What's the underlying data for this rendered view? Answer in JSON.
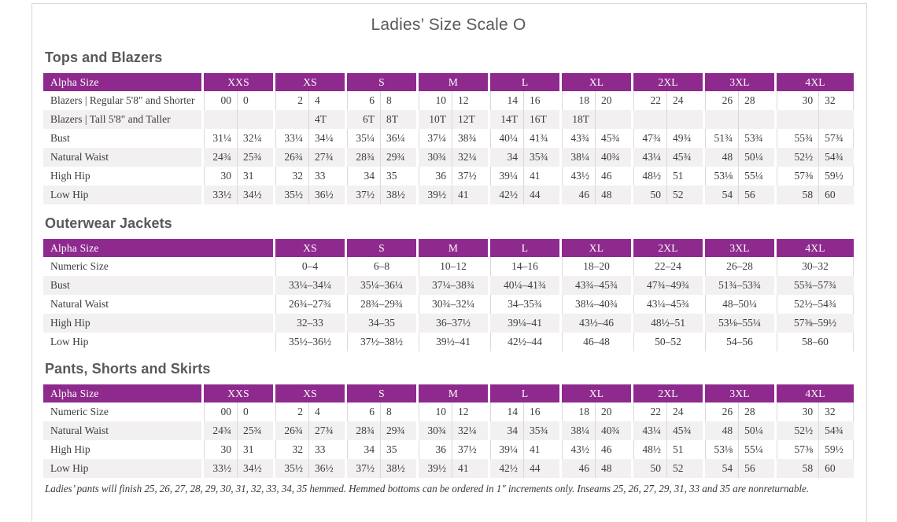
{
  "page": {
    "title": "Ladies’ Size Scale O",
    "footnote": "Ladies’ pants will finish 25, 26, 27, 28, 29, 30, 31, 32, 33, 34, 35 hemmed. Hemmed bottoms can be ordered in 1\" increments only. Inseams 25, 26, 27, 29, 31, 33 and 35 are nonreturnable."
  },
  "colors": {
    "header_purple": "#8e2a8d",
    "row_stripe": "#f2f0f1",
    "divider_gray": "#dcd8da",
    "heading_gray": "#58595b"
  },
  "tables": [
    {
      "heading": "Tops and Blazers",
      "label_header": "Alpha Size",
      "paired": true,
      "columns": [
        "XXS",
        "XS",
        "S",
        "M",
        "L",
        "XL",
        "2XL",
        "3XL",
        "4XL"
      ],
      "rows": [
        {
          "label": "Blazers  |  Regular 5'8\" and Shorter",
          "values": [
            [
              "00",
              "0"
            ],
            [
              "2",
              "4"
            ],
            [
              "6",
              "8"
            ],
            [
              "10",
              "12"
            ],
            [
              "14",
              "16"
            ],
            [
              "18",
              "20"
            ],
            [
              "22",
              "24"
            ],
            [
              "26",
              "28"
            ],
            [
              "30",
              "32"
            ]
          ]
        },
        {
          "label": "Blazers  |  Tall 5'8\" and Taller",
          "values": [
            [
              "",
              ""
            ],
            [
              "",
              "4T"
            ],
            [
              "6T",
              "8T"
            ],
            [
              "10T",
              "12T"
            ],
            [
              "14T",
              "16T"
            ],
            [
              "18T",
              ""
            ],
            [
              "",
              ""
            ],
            [
              "",
              ""
            ],
            [
              "",
              ""
            ]
          ]
        },
        {
          "label": "Bust",
          "values": [
            [
              "31¼",
              "32¼"
            ],
            [
              "33¼",
              "34¼"
            ],
            [
              "35¼",
              "36¼"
            ],
            [
              "37¼",
              "38¾"
            ],
            [
              "40¼",
              "41¾"
            ],
            [
              "43¾",
              "45¾"
            ],
            [
              "47¾",
              "49¾"
            ],
            [
              "51¾",
              "53¾"
            ],
            [
              "55¾",
              "57¾"
            ]
          ]
        },
        {
          "label": "Natural Waist",
          "values": [
            [
              "24¾",
              "25¾"
            ],
            [
              "26¾",
              "27¾"
            ],
            [
              "28¾",
              "29¾"
            ],
            [
              "30¾",
              "32¼"
            ],
            [
              "34",
              "35¾"
            ],
            [
              "38¼",
              "40¾"
            ],
            [
              "43¼",
              "45¾"
            ],
            [
              "48",
              "50¼"
            ],
            [
              "52½",
              "54¾"
            ]
          ]
        },
        {
          "label": "High Hip",
          "values": [
            [
              "30",
              "31"
            ],
            [
              "32",
              "33"
            ],
            [
              "34",
              "35"
            ],
            [
              "36",
              "37½"
            ],
            [
              "39¼",
              "41"
            ],
            [
              "43½",
              "46"
            ],
            [
              "48½",
              "51"
            ],
            [
              "53⅛",
              "55¼"
            ],
            [
              "57⅜",
              "59½"
            ]
          ]
        },
        {
          "label": "Low Hip",
          "values": [
            [
              "33½",
              "34½"
            ],
            [
              "35½",
              "36½"
            ],
            [
              "37½",
              "38½"
            ],
            [
              "39½",
              "41"
            ],
            [
              "42½",
              "44"
            ],
            [
              "46",
              "48"
            ],
            [
              "50",
              "52"
            ],
            [
              "54",
              "56"
            ],
            [
              "58",
              "60"
            ]
          ]
        }
      ]
    },
    {
      "heading": "Outerwear Jackets",
      "label_header": "Alpha Size",
      "paired": false,
      "columns": [
        "XS",
        "S",
        "M",
        "L",
        "XL",
        "2XL",
        "3XL",
        "4XL"
      ],
      "rows": [
        {
          "label": "Numeric Size",
          "values": [
            "0–4",
            "6–8",
            "10–12",
            "14–16",
            "18–20",
            "22–24",
            "26–28",
            "30–32"
          ]
        },
        {
          "label": "Bust",
          "values": [
            "33¼–34¼",
            "35¼–36¼",
            "37¼–38¾",
            "40¼–41¾",
            "43¾–45¾",
            "47¾–49¾",
            "51¾–53¾",
            "55¾–57¾"
          ]
        },
        {
          "label": "Natural Waist",
          "values": [
            "26¾–27¾",
            "28¾–29¾",
            "30¾–32¼",
            "34–35¾",
            "38¼–40¾",
            "43¼–45¾",
            "48–50¼",
            "52½–54¾"
          ]
        },
        {
          "label": "High Hip",
          "values": [
            "32–33",
            "34–35",
            "36–37½",
            "39¼–41",
            "43½–46",
            "48½–51",
            "53⅛–55¼",
            "57⅜–59½"
          ]
        },
        {
          "label": "Low Hip",
          "values": [
            "35½–36½",
            "37½–38½",
            "39½–41",
            "42½–44",
            "46–48",
            "50–52",
            "54–56",
            "58–60"
          ]
        }
      ]
    },
    {
      "heading": "Pants, Shorts and Skirts",
      "label_header": "Alpha Size",
      "paired": true,
      "columns": [
        "XXS",
        "XS",
        "S",
        "M",
        "L",
        "XL",
        "2XL",
        "3XL",
        "4XL"
      ],
      "rows": [
        {
          "label": "Numeric Size",
          "values": [
            [
              "00",
              "0"
            ],
            [
              "2",
              "4"
            ],
            [
              "6",
              "8"
            ],
            [
              "10",
              "12"
            ],
            [
              "14",
              "16"
            ],
            [
              "18",
              "20"
            ],
            [
              "22",
              "24"
            ],
            [
              "26",
              "28"
            ],
            [
              "30",
              "32"
            ]
          ]
        },
        {
          "label": "Natural Waist",
          "values": [
            [
              "24¾",
              "25¾"
            ],
            [
              "26¾",
              "27¾"
            ],
            [
              "28¾",
              "29¾"
            ],
            [
              "30¾",
              "32¼"
            ],
            [
              "34",
              "35¾"
            ],
            [
              "38¼",
              "40¾"
            ],
            [
              "43¼",
              "45¾"
            ],
            [
              "48",
              "50¼"
            ],
            [
              "52½",
              "54¾"
            ]
          ]
        },
        {
          "label": "High Hip",
          "values": [
            [
              "30",
              "31"
            ],
            [
              "32",
              "33"
            ],
            [
              "34",
              "35"
            ],
            [
              "36",
              "37½"
            ],
            [
              "39¼",
              "41"
            ],
            [
              "43½",
              "46"
            ],
            [
              "48½",
              "51"
            ],
            [
              "53⅛",
              "55¼"
            ],
            [
              "57⅜",
              "59½"
            ]
          ]
        },
        {
          "label": "Low Hip",
          "values": [
            [
              "33½",
              "34½"
            ],
            [
              "35½",
              "36½"
            ],
            [
              "37½",
              "38½"
            ],
            [
              "39½",
              "41"
            ],
            [
              "42½",
              "44"
            ],
            [
              "46",
              "48"
            ],
            [
              "50",
              "52"
            ],
            [
              "54",
              "56"
            ],
            [
              "58",
              "60"
            ]
          ]
        }
      ]
    }
  ]
}
